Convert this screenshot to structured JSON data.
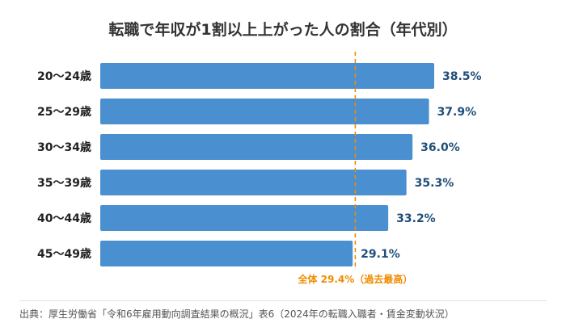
{
  "chart_data": {
    "type": "bar",
    "orientation": "horizontal",
    "title": "転職で年収が1割以上上がった人の割合（年代別）",
    "categories": [
      "20〜24歳",
      "25〜29歳",
      "30〜34歳",
      "35〜39歳",
      "40〜44歳",
      "45〜49歳"
    ],
    "values": [
      38.5,
      37.9,
      36.0,
      35.3,
      33.2,
      29.1
    ],
    "value_labels": [
      "38.5%",
      "37.9%",
      "36.0%",
      "35.3%",
      "33.2%",
      "29.1%"
    ],
    "unit": "%",
    "xlim": [
      0,
      38.5
    ],
    "reference_line": {
      "value": 29.4,
      "label": "全体 29.4%（過去最高）"
    },
    "grid": false,
    "legend": "none",
    "colors": {
      "bar": "#4a90d0",
      "value_text": "#1f4e79",
      "reference": "#f08c00"
    }
  },
  "source_note": "出典：厚生労働省「令和6年雇用動向調査結果の概況」表6（2024年の転職入職者・賃金変動状況）"
}
